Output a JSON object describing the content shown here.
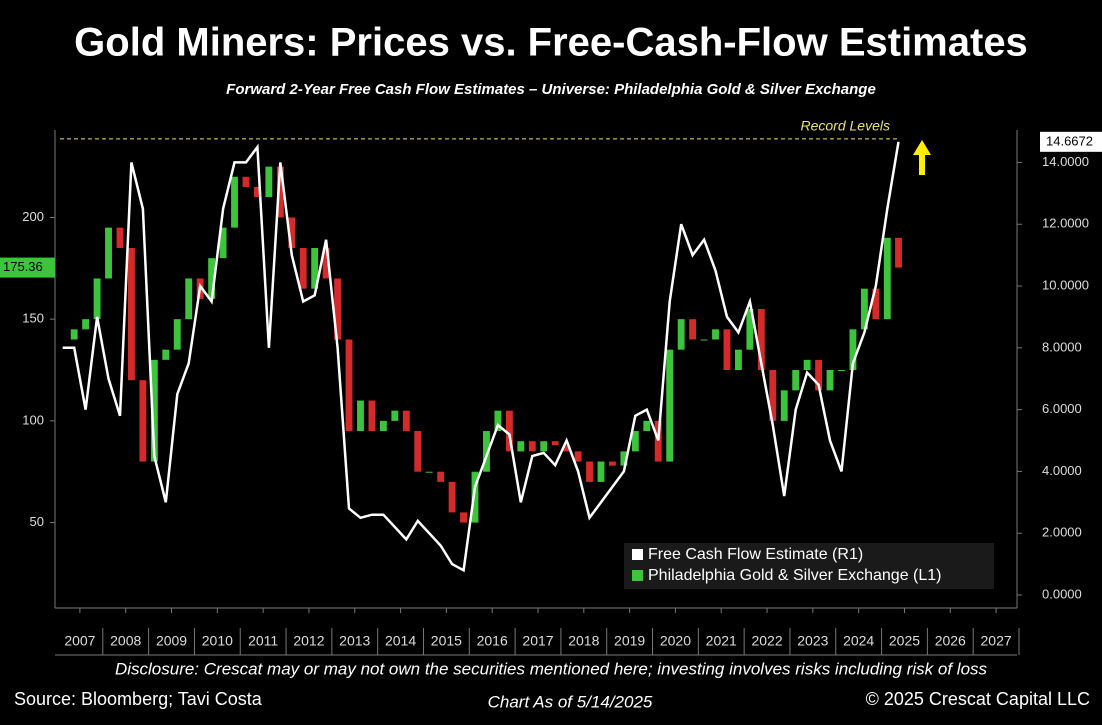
{
  "chart_data": {
    "type": "candlestick-line",
    "title": "Gold Miners: Prices vs. Free-Cash-Flow Estimates",
    "subtitle": "Forward 2-Year Free Cash Flow Estimates – Universe: Philadelphia Gold & Silver Exchange",
    "annotation": "Record Levels",
    "disclosure": "Disclosure: Crescat may or may not own the securities mentioned here; investing involves risks including risk of loss",
    "source": "Source: Bloomberg; Tavi Costa",
    "as_of": "Chart As of 5/14/2025",
    "copyright": "© 2025 Crescat Capital LLC",
    "x": [
      2007.125,
      2007.375,
      2007.625,
      2007.875,
      2008.125,
      2008.375,
      2008.625,
      2008.875,
      2009.125,
      2009.375,
      2009.625,
      2009.875,
      2010.125,
      2010.375,
      2010.625,
      2010.875,
      2011.125,
      2011.375,
      2011.625,
      2011.875,
      2012.125,
      2012.375,
      2012.625,
      2012.875,
      2013.125,
      2013.375,
      2013.625,
      2013.875,
      2014.125,
      2014.375,
      2014.625,
      2014.875,
      2015.125,
      2015.375,
      2015.625,
      2015.875,
      2016.125,
      2016.375,
      2016.625,
      2016.875,
      2017.125,
      2017.375,
      2017.625,
      2017.875,
      2018.125,
      2018.375,
      2018.625,
      2018.875,
      2019.125,
      2019.375,
      2019.625,
      2019.875,
      2020.125,
      2020.375,
      2020.625,
      2020.875,
      2021.125,
      2021.375,
      2021.625,
      2021.875,
      2022.125,
      2022.375,
      2022.625,
      2022.875,
      2023.125,
      2023.375,
      2023.625,
      2023.875,
      2024.125,
      2024.375,
      2024.625,
      2024.875,
      2025.125,
      2025.37
    ],
    "series": [
      {
        "name": "Free Cash Flow Estimate (R1)",
        "color": "#ffffff",
        "axis": "y2",
        "values": [
          8.0,
          8.0,
          6.0,
          9.0,
          7.0,
          5.8,
          14.0,
          12.5,
          4.5,
          3.0,
          6.5,
          7.5,
          10,
          9.5,
          12.5,
          14,
          14,
          14.5,
          8,
          14,
          11,
          9.5,
          9.7,
          11.5,
          8,
          2.8,
          2.5,
          2.6,
          2.6,
          2.2,
          1.8,
          2.4,
          2.0,
          1.6,
          1.0,
          0.8,
          3.5,
          4.5,
          5.5,
          5.2,
          3.0,
          4.5,
          4.6,
          4.2,
          5.0,
          4.0,
          2.5,
          3.0,
          3.5,
          4.0,
          5.8,
          6.0,
          5.0,
          9.5,
          12.0,
          11.0,
          11.5,
          10.5,
          9.0,
          8.5,
          9.5,
          7.5,
          5.5,
          3.2,
          6.0,
          7.2,
          6.8,
          5.0,
          4.0,
          7.5,
          8.5,
          10.0,
          12.5,
          14.6672
        ]
      },
      {
        "name": "Philadelphia Gold & Silver Exchange (L1)",
        "color": "#3cc43c",
        "down_color": "#d42a2a",
        "values": [
          140,
          145,
          150,
          170,
          195,
          185,
          120,
          80,
          130,
          135,
          150,
          170,
          160,
          180,
          195,
          220,
          215,
          210,
          225,
          200,
          185,
          165,
          185,
          170,
          140,
          95,
          110,
          95,
          100,
          105,
          95,
          75,
          75,
          70,
          55,
          50,
          75,
          95,
          105,
          85,
          90,
          85,
          90,
          88,
          85,
          80,
          70,
          80,
          78,
          85,
          95,
          100,
          80,
          135,
          150,
          140,
          140,
          145,
          125,
          135,
          155,
          125,
          100,
          115,
          125,
          130,
          115,
          125,
          125,
          145,
          165,
          150,
          190,
          175.36
        ]
      }
    ],
    "xlim": [
      2007,
      2028
    ],
    "xticks": [
      {
        "value": 2007.5,
        "label": "2007"
      },
      {
        "value": 2008.5,
        "label": "2008"
      },
      {
        "value": 2009.5,
        "label": "2009"
      },
      {
        "value": 2010.5,
        "label": "2010"
      },
      {
        "value": 2011.5,
        "label": "2011"
      },
      {
        "value": 2012.5,
        "label": "2012"
      },
      {
        "value": 2013.5,
        "label": "2013"
      },
      {
        "value": 2014.5,
        "label": "2014"
      },
      {
        "value": 2015.5,
        "label": "2015"
      },
      {
        "value": 2016.5,
        "label": "2016"
      },
      {
        "value": 2017.5,
        "label": "2017"
      },
      {
        "value": 2018.5,
        "label": "2018"
      },
      {
        "value": 2019.5,
        "label": "2019"
      },
      {
        "value": 2020.5,
        "label": "2020"
      },
      {
        "value": 2021.5,
        "label": "2021"
      },
      {
        "value": 2022.5,
        "label": "2022"
      },
      {
        "value": 2023.5,
        "label": "2023"
      },
      {
        "value": 2024.5,
        "label": "2024"
      },
      {
        "value": 2025.5,
        "label": "2025"
      },
      {
        "value": 2026.5,
        "label": "2026"
      },
      {
        "value": 2027.5,
        "label": "2027"
      }
    ],
    "ylim": [
      8,
      243
    ],
    "yticks": [
      50,
      100,
      150,
      200
    ],
    "y2lim": [
      -0.42,
      15.05
    ],
    "y2ticks": [
      {
        "value": 0,
        "label": "0.0000"
      },
      {
        "value": 2,
        "label": "2.0000"
      },
      {
        "value": 4,
        "label": "4.0000"
      },
      {
        "value": 6,
        "label": "6.0000"
      },
      {
        "value": 8,
        "label": "8.0000"
      },
      {
        "value": 10,
        "label": "10.0000"
      },
      {
        "value": 12,
        "label": "12.0000"
      },
      {
        "value": 14,
        "label": "14.0000"
      }
    ],
    "legend": "lower right"
  }
}
